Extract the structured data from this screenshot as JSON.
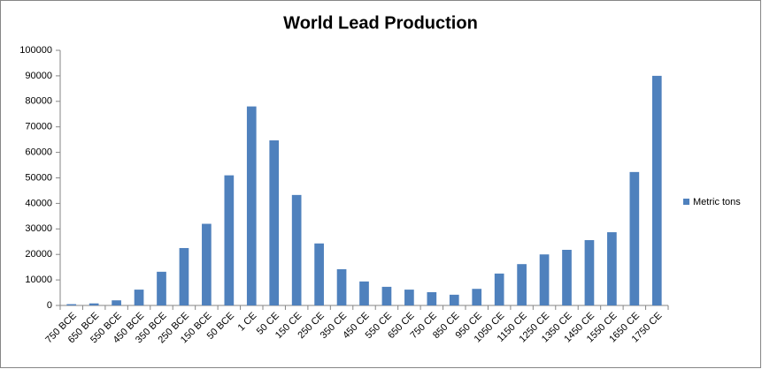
{
  "chart_data": {
    "type": "bar",
    "title": "World Lead Production",
    "categories": [
      "750 BCE",
      "650 BCE",
      "550 BCE",
      "450 BCE",
      "350 BCE",
      "250 BCE",
      "150 BCE",
      "50 BCE",
      "1 CE",
      "50 CE",
      "150 CE",
      "250 CE",
      "350 CE",
      "450 CE",
      "550 CE",
      "650 CE",
      "750 CE",
      "850 CE",
      "950 CE",
      "1050 CE",
      "1150 CE",
      "1250 CE",
      "1350 CE",
      "1450 CE",
      "1550 CE",
      "1650 CE",
      "1750 CE"
    ],
    "series": [
      {
        "name": "Metric tons",
        "color": "#4f81bd",
        "values": [
          500,
          800,
          2000,
          6200,
          13200,
          22500,
          32000,
          51000,
          78000,
          64700,
          43300,
          24300,
          14200,
          9400,
          7300,
          6200,
          5200,
          4200,
          6500,
          12500,
          16200,
          20000,
          21800,
          25600,
          28700,
          52300,
          90000
        ]
      }
    ],
    "ylim": [
      0,
      100000
    ],
    "yticks": [
      0,
      10000,
      20000,
      30000,
      40000,
      50000,
      60000,
      70000,
      80000,
      90000,
      100000
    ],
    "grid": false,
    "legend": "right"
  }
}
